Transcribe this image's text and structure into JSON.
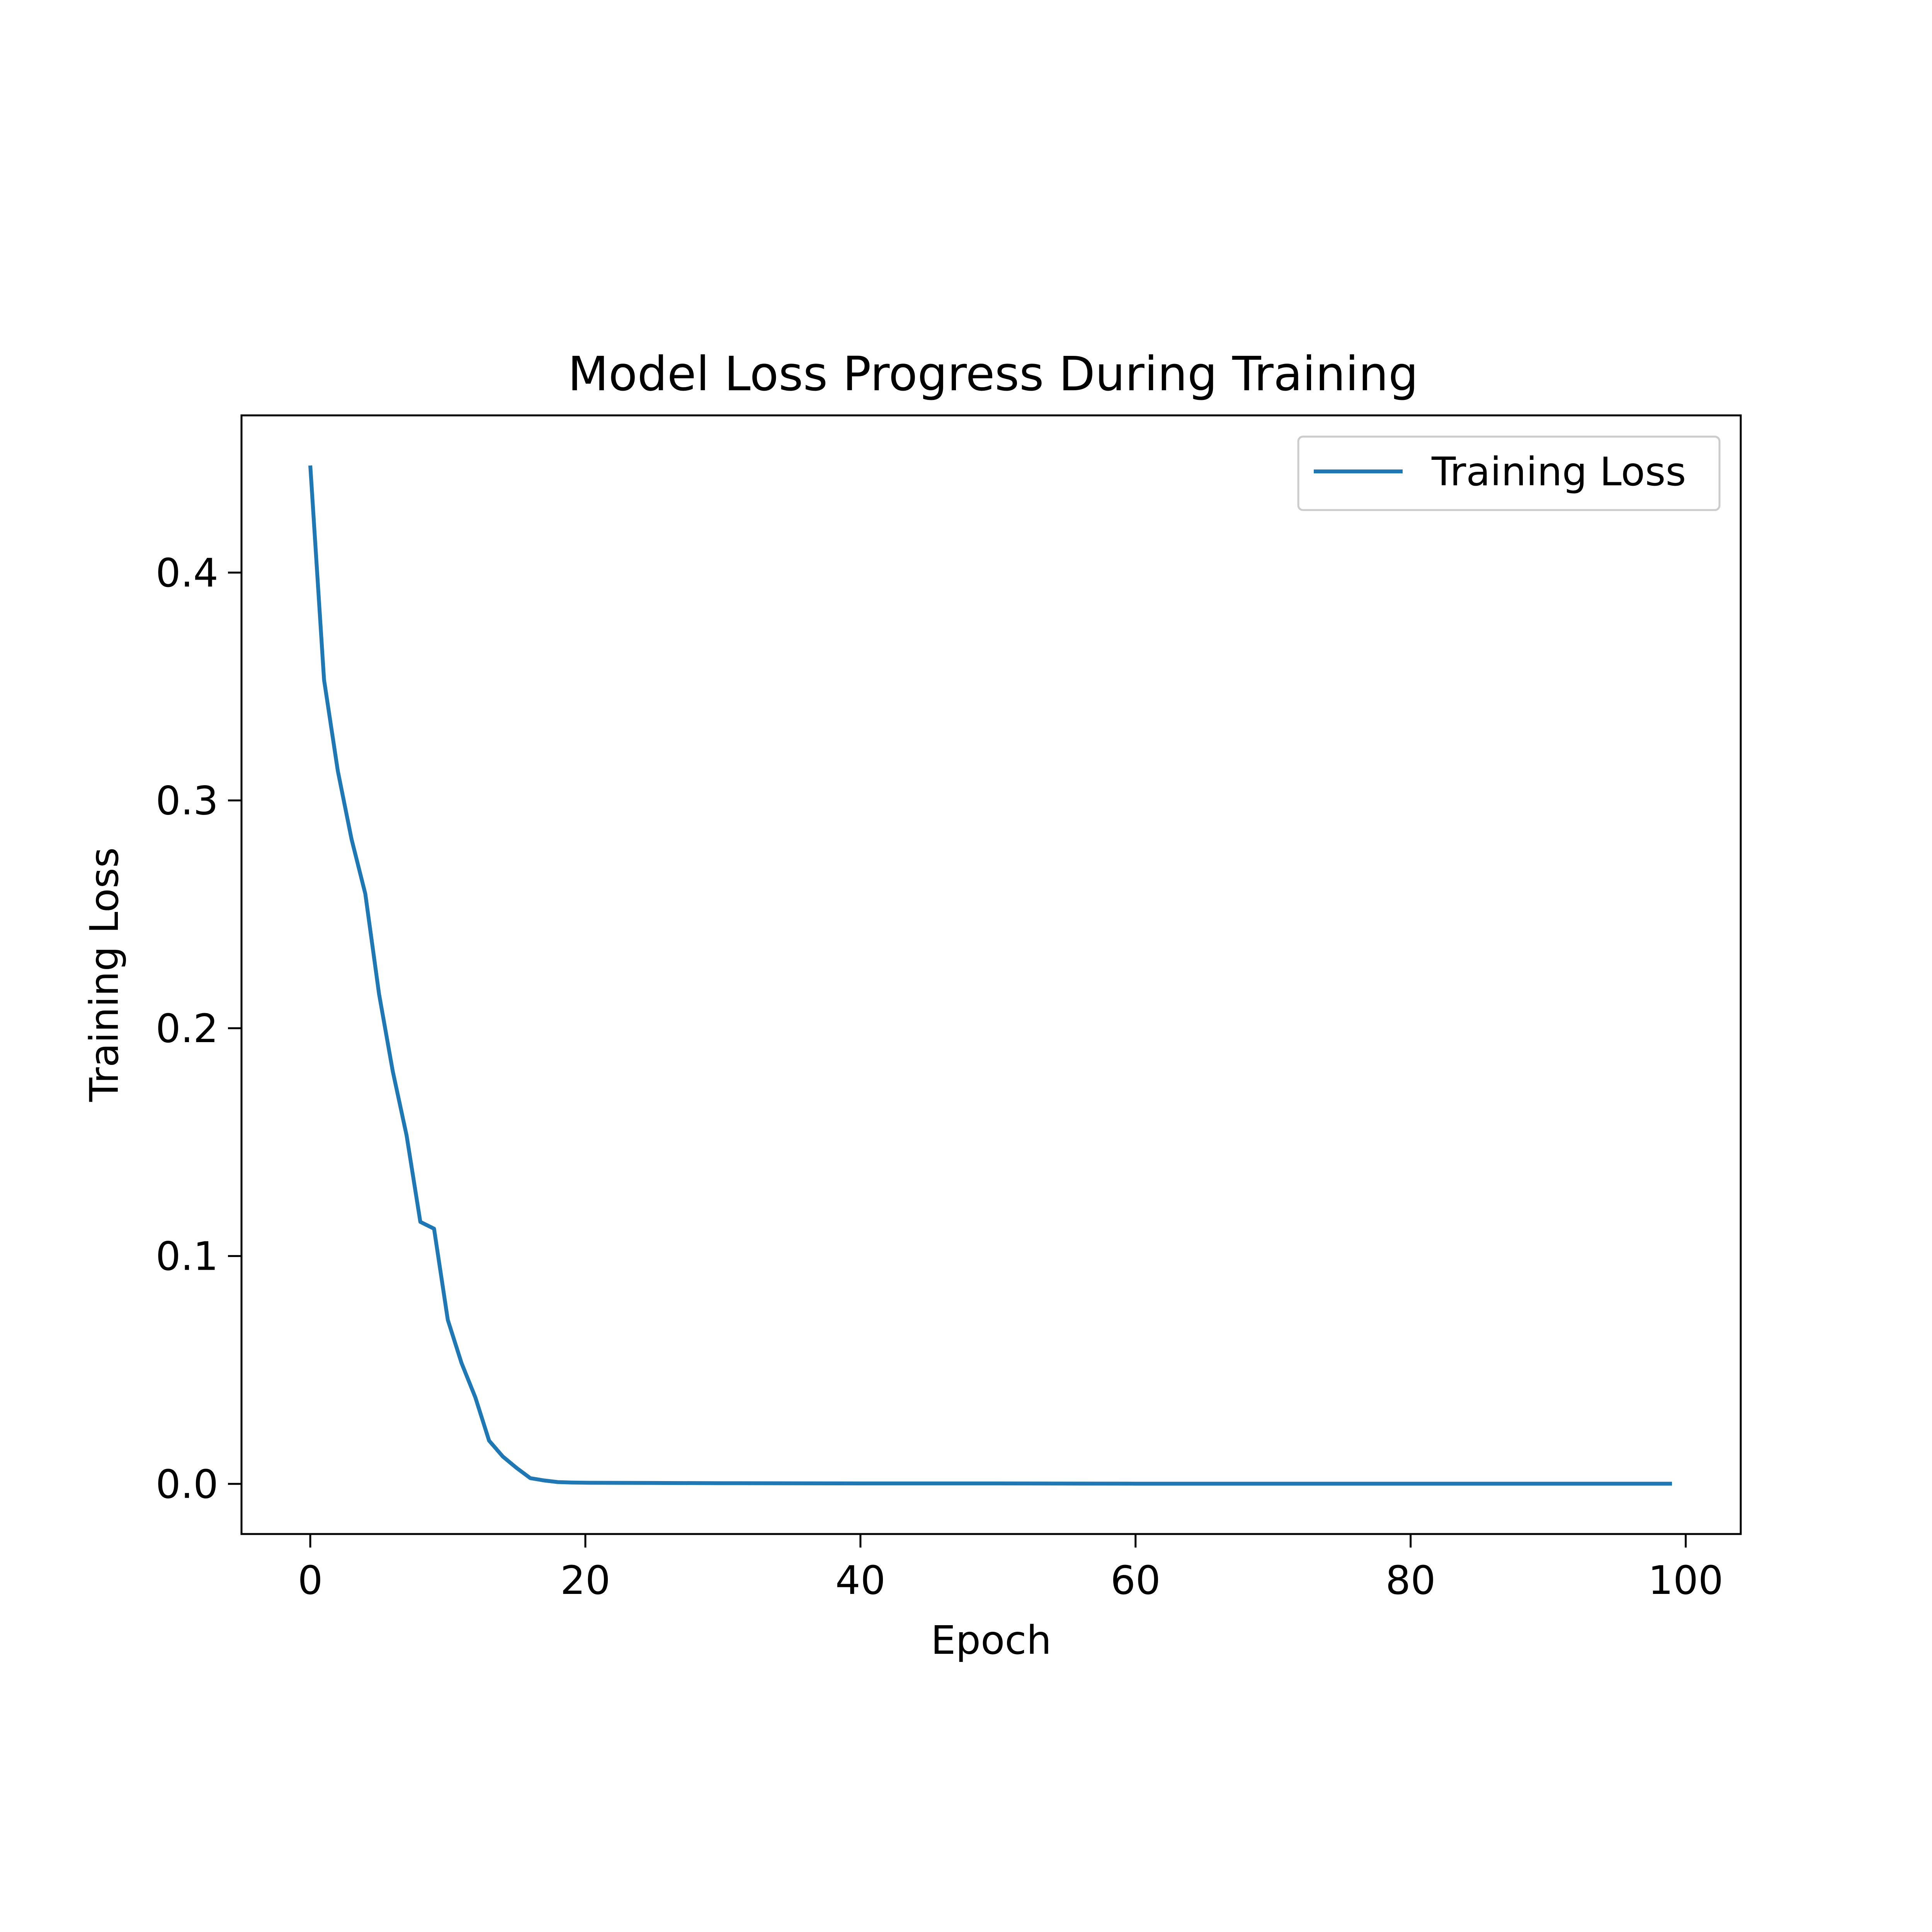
{
  "chart_data": {
    "type": "line",
    "title": "Model Loss Progress During Training",
    "xlabel": "Epoch",
    "ylabel": "Training Loss",
    "xlim": [
      -5,
      104
    ],
    "ylim": [
      -0.022,
      0.469
    ],
    "xticks": [
      0,
      20,
      40,
      60,
      80,
      100
    ],
    "xtick_labels": [
      "0",
      "20",
      "40",
      "60",
      "80",
      "100"
    ],
    "yticks": [
      0.0,
      0.1,
      0.2,
      0.3,
      0.4
    ],
    "ytick_labels": [
      "0.0",
      "0.1",
      "0.2",
      "0.3",
      "0.4"
    ],
    "grid": false,
    "legend": {
      "position": "top-right",
      "entries": [
        "Training Loss"
      ]
    },
    "series": [
      {
        "name": "Training Loss",
        "color": "#1f77b4",
        "x": [
          0,
          1,
          2,
          3,
          4,
          5,
          6,
          7,
          8,
          9,
          10,
          11,
          12,
          13,
          14,
          15,
          16,
          17,
          18,
          19,
          20,
          25,
          30,
          40,
          50,
          60,
          70,
          80,
          90,
          99
        ],
        "y": [
          0.447,
          0.353,
          0.313,
          0.283,
          0.259,
          0.215,
          0.181,
          0.153,
          0.115,
          0.112,
          0.072,
          0.053,
          0.038,
          0.019,
          0.012,
          0.007,
          0.0025,
          0.0015,
          0.0008,
          0.0006,
          0.0005,
          0.0004,
          0.0003,
          0.0002,
          0.0002,
          0.0001,
          0.0001,
          0.0001,
          0.0001,
          0.0001
        ]
      }
    ]
  }
}
